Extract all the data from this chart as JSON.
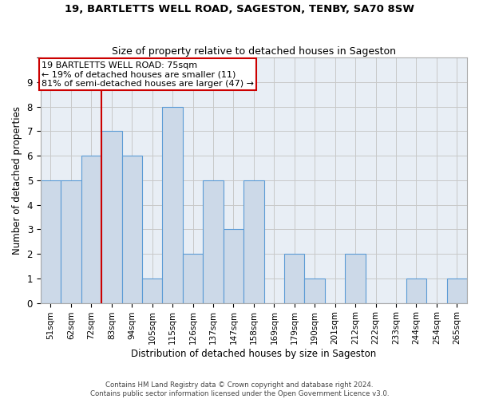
{
  "title": "19, BARTLETTS WELL ROAD, SAGESTON, TENBY, SA70 8SW",
  "subtitle": "Size of property relative to detached houses in Sageston",
  "xlabel": "Distribution of detached houses by size in Sageston",
  "ylabel": "Number of detached properties",
  "categories": [
    "51sqm",
    "62sqm",
    "72sqm",
    "83sqm",
    "94sqm",
    "105sqm",
    "115sqm",
    "126sqm",
    "137sqm",
    "147sqm",
    "158sqm",
    "169sqm",
    "179sqm",
    "190sqm",
    "201sqm",
    "212sqm",
    "222sqm",
    "233sqm",
    "244sqm",
    "254sqm",
    "265sqm"
  ],
  "values": [
    5,
    5,
    6,
    7,
    6,
    1,
    8,
    2,
    5,
    3,
    5,
    0,
    2,
    1,
    0,
    2,
    0,
    0,
    1,
    0,
    1
  ],
  "bar_color": "#ccd9e8",
  "bar_edgecolor": "#5b9bd5",
  "bar_linewidth": 0.8,
  "annotation_text": "19 BARTLETTS WELL ROAD: 75sqm\n← 19% of detached houses are smaller (11)\n81% of semi-detached houses are larger (47) →",
  "annotation_box_color": "#ffffff",
  "annotation_box_edgecolor": "#cc0000",
  "ylim": [
    0,
    10
  ],
  "yticks": [
    0,
    1,
    2,
    3,
    4,
    5,
    6,
    7,
    8,
    9,
    10
  ],
  "grid_color": "#c8c8c8",
  "background_color": "#e8eef5",
  "footer1": "Contains HM Land Registry data © Crown copyright and database right 2024.",
  "footer2": "Contains public sector information licensed under the Open Government Licence v3.0."
}
